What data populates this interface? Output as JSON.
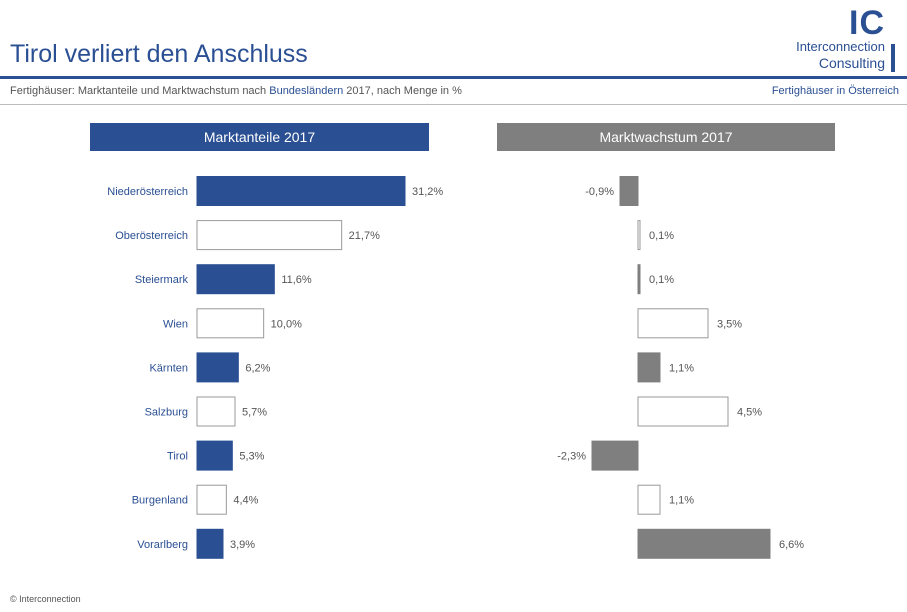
{
  "header": {
    "title": "Tirol verliert den Anschluss",
    "subtitle_pre": "Fertighäuser: Marktanteile und Marktwachstum nach ",
    "subtitle_highlight": "Bundesländern",
    "subtitle_post": " 2017, nach Menge in %",
    "topic": "Fertighäuser in Österreich"
  },
  "logo": {
    "mark": "IC",
    "line1": "Interconnection",
    "line2": "Consulting"
  },
  "footer": {
    "text": "© Interconnection"
  },
  "colors": {
    "brand_blue": "#2a4f93",
    "grey_bar": "#7f7f7f",
    "outline": "#9a9a9a"
  },
  "chart_data": [
    {
      "type": "bar",
      "orientation": "horizontal",
      "title": "Marktanteile 2017",
      "categories": [
        "Niederösterreich",
        "Oberösterreich",
        "Steiermark",
        "Wien",
        "Kärnten",
        "Salzburg",
        "Tirol",
        "Burgenland",
        "Vorarlberg"
      ],
      "values": [
        31.2,
        21.7,
        11.6,
        10.0,
        6.2,
        5.7,
        5.3,
        4.4,
        3.9
      ],
      "labels": [
        "31,2%",
        "21,7%",
        "11,6%",
        "10,0%",
        "6,2%",
        "5,7%",
        "5,3%",
        "4,4%",
        "3,9%"
      ],
      "filled": [
        true,
        false,
        true,
        false,
        true,
        false,
        true,
        false,
        true
      ],
      "unit": "%"
    },
    {
      "type": "bar",
      "orientation": "horizontal",
      "title": "Marktwachstum 2017",
      "categories": [
        "Niederösterreich",
        "Oberösterreich",
        "Steiermark",
        "Wien",
        "Kärnten",
        "Salzburg",
        "Tirol",
        "Burgenland",
        "Vorarlberg"
      ],
      "values": [
        -0.9,
        0.1,
        0.1,
        3.5,
        1.1,
        4.5,
        -2.3,
        1.1,
        6.6
      ],
      "labels": [
        "-0,9%",
        "0,1%",
        "0,1%",
        "3,5%",
        "1,1%",
        "4,5%",
        "-2,3%",
        "1,1%",
        "6,6%"
      ],
      "filled": [
        true,
        false,
        true,
        false,
        true,
        false,
        true,
        false,
        true
      ],
      "unit": "%"
    }
  ]
}
